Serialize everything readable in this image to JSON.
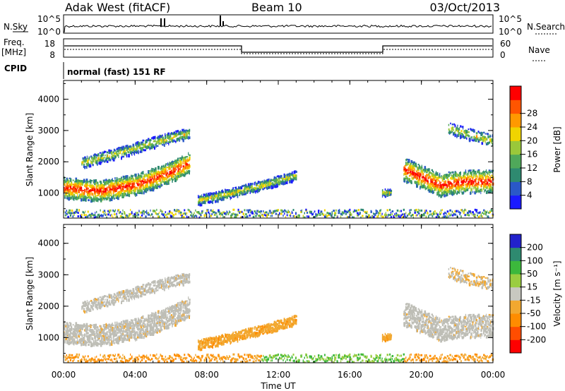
{
  "header": {
    "station": "Adak West (fitACF)",
    "beam": "Beam 10",
    "date": "03/Oct/2013"
  },
  "aux": {
    "nsky_label": "N.Sky",
    "nsky_tick_top": "10^5",
    "nsky_tick_bottom": "10^0",
    "nsearch_label": "N.Search",
    "nsearch_tick_top": "10^5",
    "nsearch_tick_bottom": "10^0",
    "freq_label": "Freq.",
    "freq_unit": "[MHz]",
    "freq_tick_top": "18",
    "freq_tick_bottom": "8",
    "nave_label": "Nave",
    "nave_tick_top": "60",
    "nave_tick_bottom": "0",
    "cpid_label": "CPID",
    "cpid_text": "normal (fast) 151 RF"
  },
  "colors": {
    "power": [
      "#1a1aff",
      "#2a58c8",
      "#2e8a70",
      "#4fa85a",
      "#9ac83a",
      "#f0d400",
      "#ff9900",
      "#ff5500",
      "#ff0000"
    ],
    "velocity": [
      "#ff0000",
      "#ff4d00",
      "#ff8c00",
      "#f2a830",
      "#c8c8c0",
      "#9acd40",
      "#3cb83c",
      "#2e8a70",
      "#2222cc"
    ],
    "ground_scatter": "#bebeb6"
  },
  "chart_data": [
    {
      "type": "heatmap",
      "panel": "power",
      "ylabel": "Slant Range [km]",
      "yticks": [
        "1000",
        "2000",
        "3000",
        "4000"
      ],
      "ylim": [
        200,
        4600
      ],
      "xlim_hours": [
        0,
        24
      ],
      "colorbar_label": "Power [dB]",
      "colorbar_ticks": [
        "4",
        "8",
        "12",
        "16",
        "20",
        "24",
        "28"
      ],
      "features": [
        {
          "name": "main band",
          "t": [
            0,
            2,
            4,
            6,
            7
          ],
          "range_km": [
            1200,
            1100,
            1300,
            1700,
            2000
          ]
        },
        {
          "name": "upper band",
          "t": [
            1,
            3,
            5,
            7
          ],
          "range_km": [
            2000,
            2300,
            2650,
            2950
          ]
        },
        {
          "name": "mid band",
          "t": [
            7.5,
            9.5,
            11.5,
            13
          ],
          "range_km": [
            800,
            1050,
            1350,
            1600
          ]
        },
        {
          "name": "evening band",
          "t": [
            19,
            21,
            22.5,
            24
          ],
          "range_km": [
            1800,
            1300,
            1400,
            1400
          ]
        }
      ]
    },
    {
      "type": "heatmap",
      "panel": "velocity",
      "ylabel": "Slant Range [km]",
      "yticks": [
        "1000",
        "2000",
        "3000",
        "4000"
      ],
      "ylim": [
        200,
        4600
      ],
      "xlim_hours": [
        0,
        24
      ],
      "xlabel": "Time UT",
      "xticks": [
        "00:00",
        "04:00",
        "08:00",
        "12:00",
        "16:00",
        "20:00",
        "00:00"
      ],
      "colorbar_label": "Velocity [m s⁻¹]",
      "colorbar_ticks": [
        "200",
        "100",
        "50",
        "15",
        "-15",
        "-50",
        "-100",
        "-200"
      ]
    }
  ]
}
